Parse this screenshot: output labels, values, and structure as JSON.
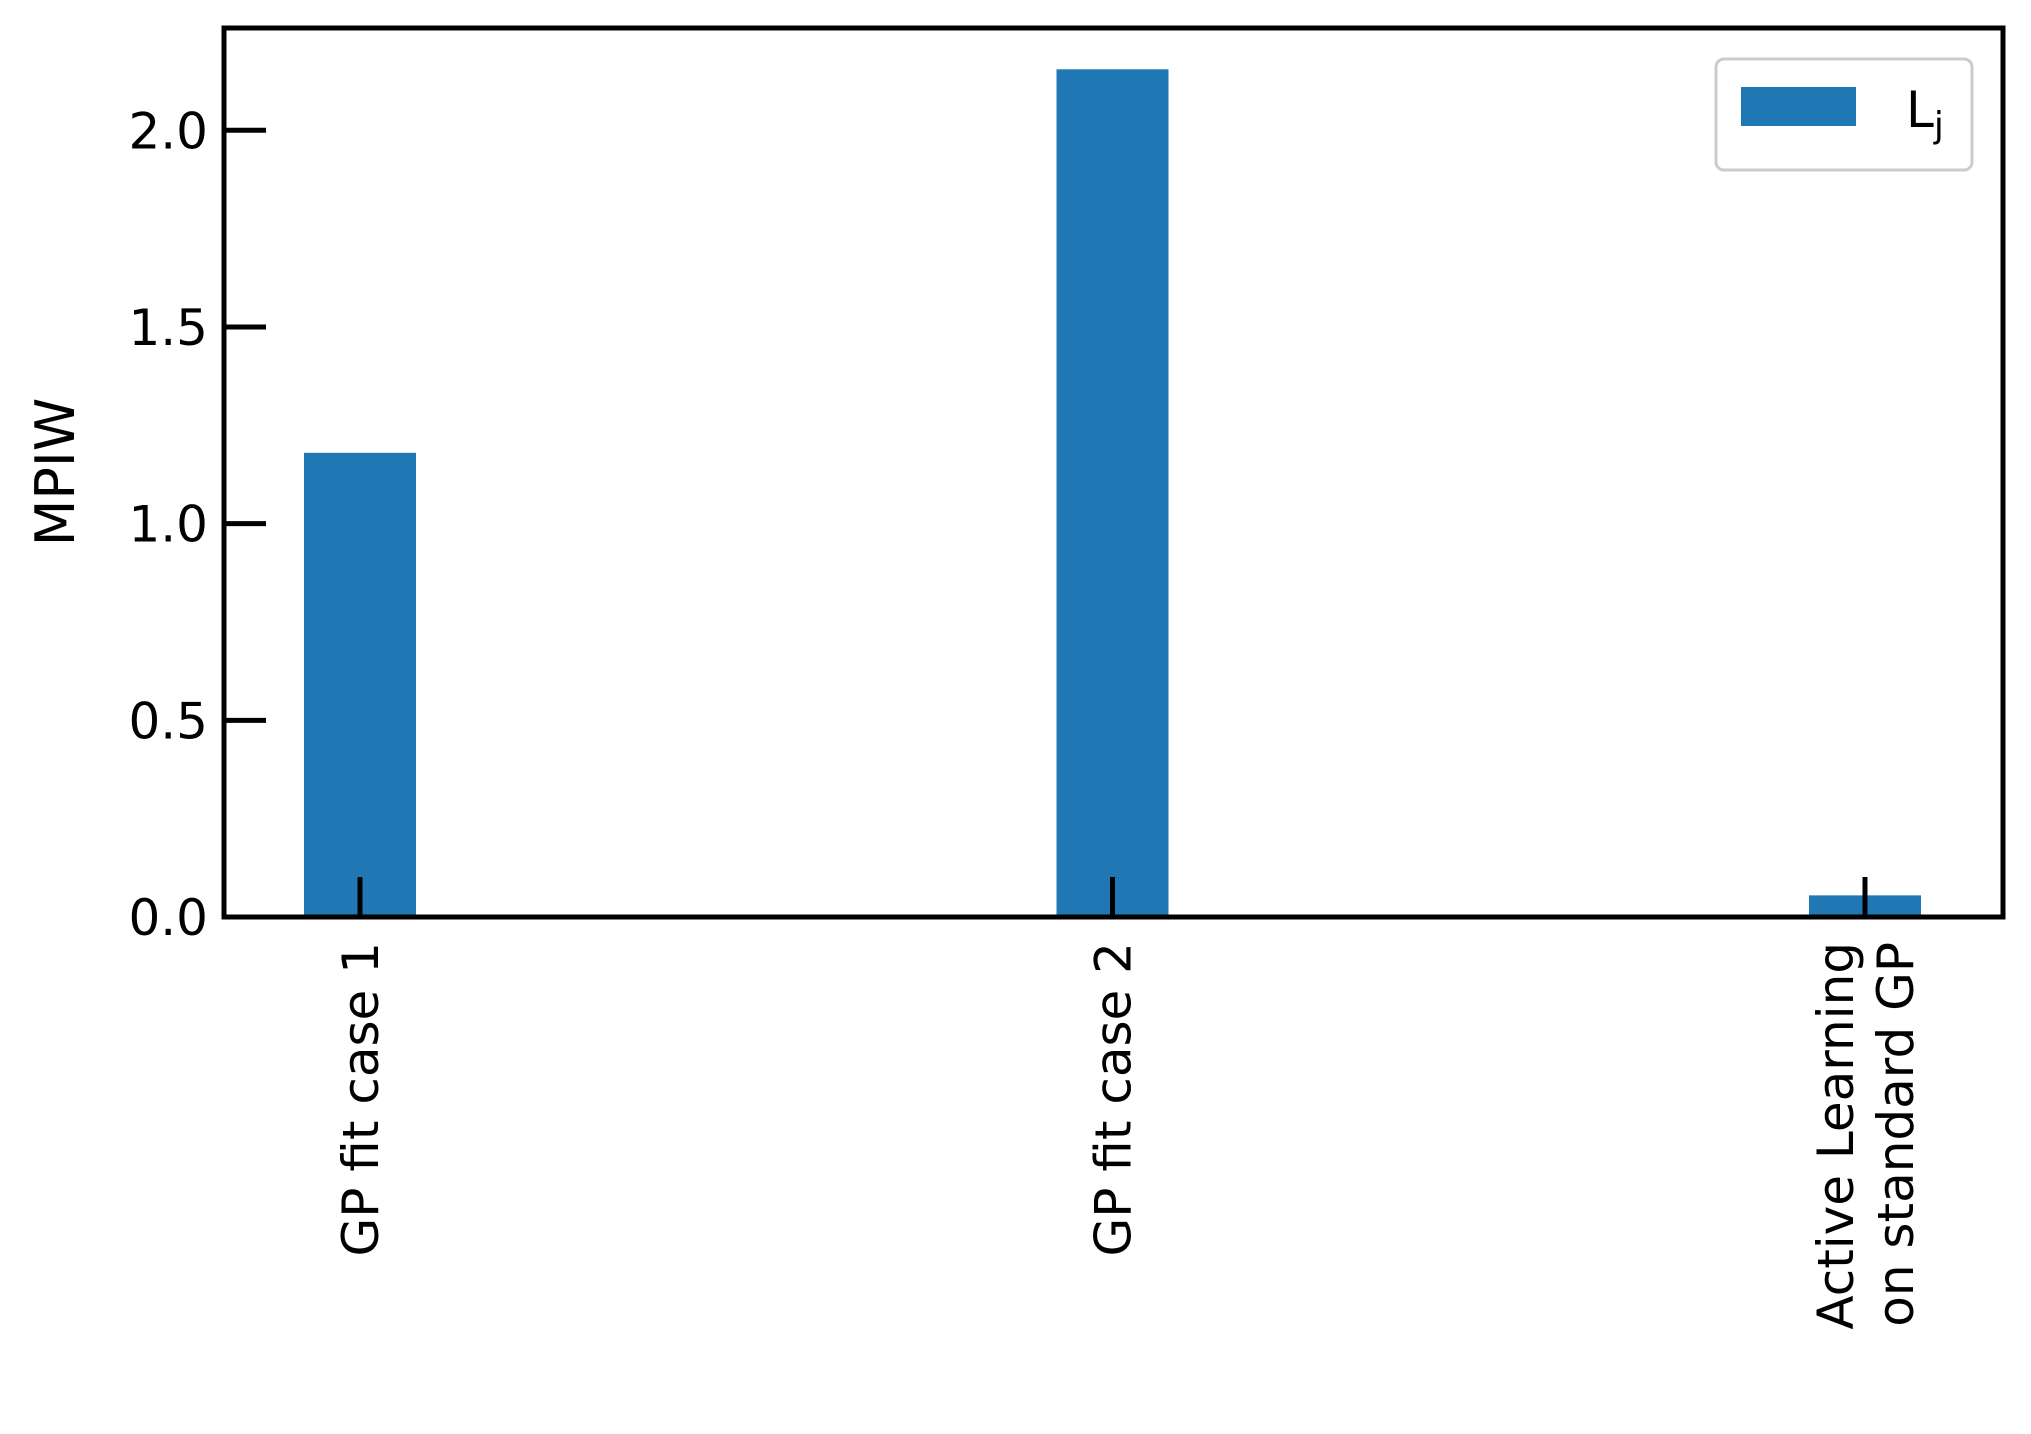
{
  "chart_data": {
    "type": "bar",
    "categories": [
      "GP fit case 1",
      "GP fit case 2",
      "Active Learning\non standard GP"
    ],
    "series": [
      {
        "name": "L",
        "name_subscript": "j",
        "color": "#1f77b4",
        "values": [
          1.18,
          2.155,
          0.055
        ]
      }
    ],
    "ylabel": "MPIW",
    "xlabel": "",
    "title": "",
    "ylim": [
      0,
      2.26
    ],
    "yticks": [
      0.0,
      0.5,
      1.0,
      1.5,
      2.0
    ],
    "ytick_labels": [
      "0.0",
      "0.5",
      "1.0",
      "1.5",
      "2.0"
    ],
    "legend_position": "top-right",
    "grid": false
  }
}
